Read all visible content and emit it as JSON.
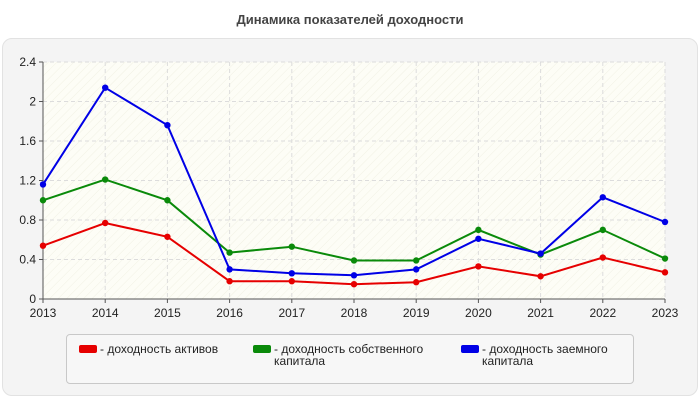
{
  "chart_data": {
    "type": "line",
    "title": "Динамика показателей доходности",
    "categories": [
      "2013",
      "2014",
      "2015",
      "2016",
      "2017",
      "2018",
      "2019",
      "2020",
      "2021",
      "2022",
      "2023"
    ],
    "ylim": [
      0,
      2.4
    ],
    "yticks": [
      "0",
      "0.4",
      "0.8",
      "1.2",
      "1.6",
      "2",
      "2.4"
    ],
    "grid": true,
    "legend_position": "bottom",
    "series": [
      {
        "name": "- доходность активов",
        "color": "#e60000",
        "values": [
          0.54,
          0.77,
          0.63,
          0.18,
          0.18,
          0.15,
          0.17,
          0.33,
          0.23,
          0.42,
          0.27
        ]
      },
      {
        "name": "- доходность собственного капитала",
        "color": "#0a8a0a",
        "values": [
          1.0,
          1.21,
          1.0,
          0.47,
          0.53,
          0.39,
          0.39,
          0.7,
          0.45,
          0.7,
          0.41
        ]
      },
      {
        "name": "- доходность заемного капитала",
        "color": "#0000e6",
        "values": [
          1.16,
          2.14,
          1.76,
          0.3,
          0.26,
          0.24,
          0.3,
          0.61,
          0.46,
          1.03,
          0.78
        ]
      }
    ]
  }
}
